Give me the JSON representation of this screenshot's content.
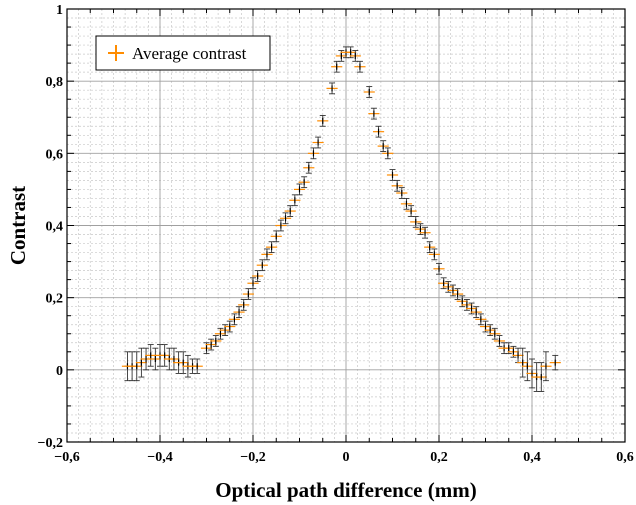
{
  "chart_data": {
    "type": "scatter",
    "title": "",
    "xlabel": "Optical path difference (mm)",
    "ylabel": "Contrast",
    "xlim": [
      -0.6,
      0.6
    ],
    "ylim": [
      -0.2,
      1.0
    ],
    "x_ticks": [
      "−0,6",
      "−0,4",
      "−0,2",
      "0",
      "0,2",
      "0,4",
      "0,6"
    ],
    "y_ticks": [
      "−0,2",
      "0",
      "0,2",
      "0,4",
      "0,6",
      "0,8",
      "1"
    ],
    "x_tick_values": [
      -0.6,
      -0.4,
      -0.2,
      0,
      0.2,
      0.4,
      0.6
    ],
    "y_tick_values": [
      -0.2,
      0,
      0.2,
      0.4,
      0.6,
      0.8,
      1.0
    ],
    "grid": true,
    "legend_position": "top-left",
    "colors": {
      "data": "#ff8c00",
      "error_bars": "#333333",
      "grid_major": "#a0a0a0",
      "grid_minor": "#c8c8c8"
    },
    "series": [
      {
        "name": "Average contrast",
        "x_error": 0.012,
        "points": [
          [
            -0.47,
            0.01,
            0.04
          ],
          [
            -0.46,
            0.01,
            0.04
          ],
          [
            -0.45,
            0.01,
            0.04
          ],
          [
            -0.44,
            0.02,
            0.04
          ],
          [
            -0.43,
            0.03,
            0.03
          ],
          [
            -0.42,
            0.04,
            0.03
          ],
          [
            -0.41,
            0.03,
            0.03
          ],
          [
            -0.4,
            0.04,
            0.03
          ],
          [
            -0.39,
            0.04,
            0.03
          ],
          [
            -0.38,
            0.03,
            0.03
          ],
          [
            -0.37,
            0.03,
            0.03
          ],
          [
            -0.36,
            0.02,
            0.03
          ],
          [
            -0.35,
            0.02,
            0.03
          ],
          [
            -0.34,
            0.01,
            0.03
          ],
          [
            -0.33,
            0.01,
            0.02
          ],
          [
            -0.32,
            0.01,
            0.02
          ],
          [
            -0.3,
            0.06,
            0.015
          ],
          [
            -0.29,
            0.07,
            0.015
          ],
          [
            -0.28,
            0.08,
            0.015
          ],
          [
            -0.27,
            0.1,
            0.015
          ],
          [
            -0.26,
            0.11,
            0.015
          ],
          [
            -0.25,
            0.12,
            0.015
          ],
          [
            -0.24,
            0.14,
            0.015
          ],
          [
            -0.23,
            0.16,
            0.015
          ],
          [
            -0.22,
            0.18,
            0.015
          ],
          [
            -0.21,
            0.21,
            0.015
          ],
          [
            -0.2,
            0.24,
            0.015
          ],
          [
            -0.19,
            0.26,
            0.015
          ],
          [
            -0.18,
            0.29,
            0.015
          ],
          [
            -0.17,
            0.32,
            0.015
          ],
          [
            -0.16,
            0.34,
            0.015
          ],
          [
            -0.15,
            0.37,
            0.015
          ],
          [
            -0.14,
            0.4,
            0.015
          ],
          [
            -0.13,
            0.42,
            0.015
          ],
          [
            -0.12,
            0.44,
            0.015
          ],
          [
            -0.11,
            0.47,
            0.015
          ],
          [
            -0.1,
            0.5,
            0.015
          ],
          [
            -0.09,
            0.52,
            0.015
          ],
          [
            -0.08,
            0.56,
            0.015
          ],
          [
            -0.07,
            0.6,
            0.015
          ],
          [
            -0.06,
            0.63,
            0.015
          ],
          [
            -0.05,
            0.69,
            0.015
          ],
          [
            -0.03,
            0.78,
            0.015
          ],
          [
            -0.02,
            0.84,
            0.015
          ],
          [
            -0.01,
            0.87,
            0.015
          ],
          [
            0.0,
            0.88,
            0.015
          ],
          [
            0.01,
            0.88,
            0.015
          ],
          [
            0.02,
            0.87,
            0.015
          ],
          [
            0.03,
            0.84,
            0.015
          ],
          [
            0.05,
            0.77,
            0.015
          ],
          [
            0.06,
            0.71,
            0.015
          ],
          [
            0.07,
            0.66,
            0.015
          ],
          [
            0.08,
            0.62,
            0.015
          ],
          [
            0.09,
            0.6,
            0.015
          ],
          [
            0.1,
            0.54,
            0.015
          ],
          [
            0.11,
            0.51,
            0.015
          ],
          [
            0.12,
            0.49,
            0.015
          ],
          [
            0.13,
            0.46,
            0.015
          ],
          [
            0.14,
            0.44,
            0.015
          ],
          [
            0.15,
            0.41,
            0.015
          ],
          [
            0.16,
            0.39,
            0.015
          ],
          [
            0.17,
            0.38,
            0.015
          ],
          [
            0.18,
            0.34,
            0.015
          ],
          [
            0.19,
            0.32,
            0.015
          ],
          [
            0.2,
            0.28,
            0.015
          ],
          [
            0.21,
            0.24,
            0.015
          ],
          [
            0.22,
            0.23,
            0.015
          ],
          [
            0.23,
            0.22,
            0.015
          ],
          [
            0.24,
            0.21,
            0.015
          ],
          [
            0.25,
            0.19,
            0.015
          ],
          [
            0.26,
            0.18,
            0.015
          ],
          [
            0.27,
            0.17,
            0.015
          ],
          [
            0.28,
            0.16,
            0.015
          ],
          [
            0.29,
            0.14,
            0.015
          ],
          [
            0.3,
            0.12,
            0.015
          ],
          [
            0.31,
            0.11,
            0.015
          ],
          [
            0.32,
            0.1,
            0.015
          ],
          [
            0.33,
            0.08,
            0.015
          ],
          [
            0.34,
            0.06,
            0.015
          ],
          [
            0.35,
            0.06,
            0.015
          ],
          [
            0.36,
            0.05,
            0.015
          ],
          [
            0.37,
            0.04,
            0.02
          ],
          [
            0.38,
            0.02,
            0.04
          ],
          [
            0.39,
            0.01,
            0.04
          ],
          [
            0.4,
            -0.01,
            0.04
          ],
          [
            0.41,
            -0.02,
            0.04
          ],
          [
            0.42,
            -0.02,
            0.04
          ],
          [
            0.43,
            0.01,
            0.04
          ],
          [
            0.45,
            0.02,
            0.02
          ]
        ]
      }
    ]
  }
}
